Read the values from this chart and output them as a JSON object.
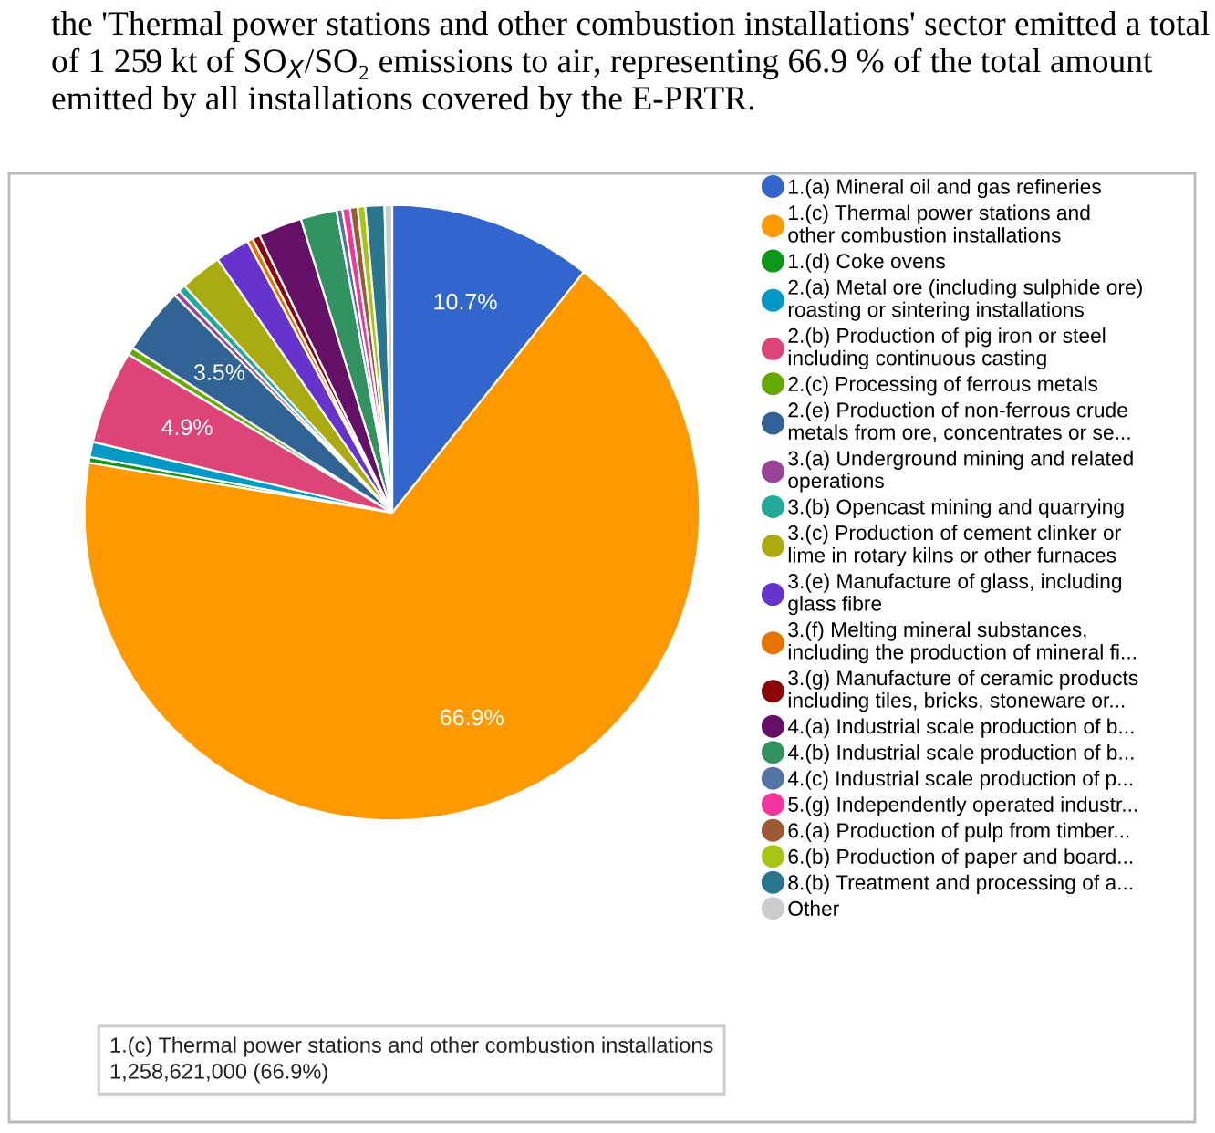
{
  "chart_data": {
    "type": "pie",
    "title": "the 'Thermal power stations and other combustion installations' sector emitted a total of 1 259 kt of SO$_{X}$/SO₂ emissions to air, representing 66.9 % of the total amount emitted by all installations covered by the E-PRTR.",
    "categories": [
      "1.(a) Mineral oil and gas refineries",
      "1.(c) Thermal power stations and\nother combustion installations",
      "1.(d) Coke ovens",
      "2.(a) Metal ore (including sulphide ore)\nroasting or sintering installations",
      "2.(b) Production of pig iron or steel\nincluding continuous casting",
      "2.(c) Processing of ferrous metals",
      "2.(e) Production of non-ferrous crude\nmetals from ore, concentrates or se...",
      "3.(a) Underground mining and related\noperations",
      "3.(b) Opencast mining and quarrying",
      "3.(c) Production of cement clinker or\nlime in rotary kilns or other furnaces",
      "3.(e) Manufacture of glass, including\nglass fibre",
      "3.(f) Melting mineral substances,\nincluding the production of mineral fi...",
      "3.(g) Manufacture of ceramic products\nincluding tiles, bricks, stoneware or...",
      "4.(a) Industrial scale production of b...",
      "4.(b) Industrial scale production of b...",
      "4.(c) Industrial scale production of p...",
      "5.(g) Independently operated industr...",
      "6.(a) Production of pulp from timber...",
      "6.(b) Production of paper and board...",
      "8.(b) Treatment and processing of a...",
      "Other"
    ],
    "values": [
      10.7,
      66.9,
      0.3,
      0.8,
      4.9,
      0.4,
      3.5,
      0.3,
      0.4,
      2.2,
      1.8,
      0.3,
      0.4,
      2.3,
      1.9,
      0.3,
      0.4,
      0.4,
      0.4,
      1.0,
      0.4
    ],
    "colors": [
      "#3366cc",
      "#ff9900",
      "#109618",
      "#0099c6",
      "#dd4477",
      "#66aa00",
      "#316395",
      "#994499",
      "#22aa99",
      "#aaaa11",
      "#6633cc",
      "#e67300",
      "#8b0707",
      "#651067",
      "#329262",
      "#5574a6",
      "#f4359e",
      "#9c5935",
      "#a9c413",
      "#2a778d",
      "#cccccc"
    ],
    "value_labels": [
      "10.7%",
      "66.9%",
      null,
      null,
      "4.9%",
      null,
      "3.5%",
      null,
      null,
      null,
      null,
      null,
      null,
      null,
      null,
      null,
      null,
      null,
      null,
      null,
      null
    ],
    "annotations": [
      "1.(c) Thermal power stations and other combustion installations\n1,258,621,000 (66.9%)"
    ],
    "legend": "right"
  }
}
